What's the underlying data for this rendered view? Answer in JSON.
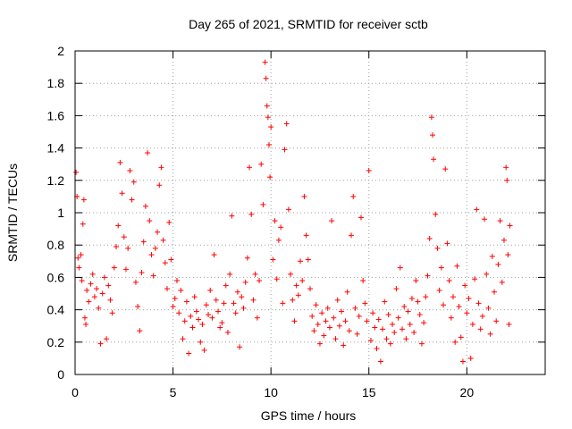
{
  "chart_data": {
    "type": "scatter",
    "title": "Day 265 of 2021, SRMTID for receiver sctb",
    "xlabel": "GPS time / hours",
    "ylabel": "SRMTID / TECUs",
    "xlim": [
      0,
      24
    ],
    "ylim": [
      0,
      2
    ],
    "xticks": [
      0,
      5,
      10,
      15,
      20
    ],
    "xtick_labels": [
      "0",
      "5",
      "10",
      "15",
      "20"
    ],
    "yticks": [
      0,
      0.2,
      0.4,
      0.6,
      0.8,
      1,
      1.2,
      1.4,
      1.6,
      1.8,
      2
    ],
    "ytick_labels": [
      "0",
      "0.2",
      "0.4",
      "0.6",
      "0.8",
      "1",
      "1.2",
      "1.4",
      "1.6",
      "1.8",
      "2"
    ],
    "grid": true,
    "marker": "+",
    "color": "#ff0000",
    "series": [
      {
        "name": "SRMTID",
        "points": [
          [
            0.05,
            1.25
          ],
          [
            0.1,
            1.1
          ],
          [
            0.15,
            0.72
          ],
          [
            0.2,
            0.66
          ],
          [
            0.3,
            0.74
          ],
          [
            0.35,
            0.58
          ],
          [
            0.4,
            0.93
          ],
          [
            0.45,
            1.08
          ],
          [
            0.5,
            0.35
          ],
          [
            0.55,
            0.31
          ],
          [
            0.6,
            0.52
          ],
          [
            0.7,
            0.45
          ],
          [
            0.8,
            0.56
          ],
          [
            0.9,
            0.62
          ],
          [
            1.0,
            0.48
          ],
          [
            1.1,
            0.53
          ],
          [
            1.2,
            0.41
          ],
          [
            1.3,
            0.19
          ],
          [
            1.4,
            0.5
          ],
          [
            1.5,
            0.6
          ],
          [
            1.6,
            0.22
          ],
          [
            1.7,
            0.55
          ],
          [
            1.8,
            0.46
          ],
          [
            1.9,
            0.38
          ],
          [
            2.0,
            0.66
          ],
          [
            2.1,
            0.79
          ],
          [
            2.2,
            0.92
          ],
          [
            2.3,
            1.31
          ],
          [
            2.4,
            1.12
          ],
          [
            2.5,
            0.85
          ],
          [
            2.6,
            0.65
          ],
          [
            2.7,
            0.78
          ],
          [
            2.8,
            1.26
          ],
          [
            2.9,
            1.08
          ],
          [
            3.0,
            1.19
          ],
          [
            3.1,
            0.57
          ],
          [
            3.2,
            0.42
          ],
          [
            3.3,
            0.27
          ],
          [
            3.4,
            0.63
          ],
          [
            3.5,
            0.82
          ],
          [
            3.6,
            1.04
          ],
          [
            3.7,
            1.37
          ],
          [
            3.8,
            0.95
          ],
          [
            3.9,
            0.74
          ],
          [
            4.0,
            0.61
          ],
          [
            4.1,
            0.78
          ],
          [
            4.2,
            0.88
          ],
          [
            4.3,
            1.17
          ],
          [
            4.4,
            1.28
          ],
          [
            4.5,
            0.83
          ],
          [
            4.6,
            0.69
          ],
          [
            4.7,
            0.53
          ],
          [
            4.8,
            0.94
          ],
          [
            4.9,
            0.71
          ],
          [
            5.0,
            0.42
          ],
          [
            5.1,
            0.47
          ],
          [
            5.2,
            0.58
          ],
          [
            5.3,
            0.38
          ],
          [
            5.4,
            0.52
          ],
          [
            5.5,
            0.22
          ],
          [
            5.6,
            0.33
          ],
          [
            5.7,
            0.45
          ],
          [
            5.8,
            0.13
          ],
          [
            5.9,
            0.36
          ],
          [
            6.0,
            0.29
          ],
          [
            6.1,
            0.48
          ],
          [
            6.2,
            0.39
          ],
          [
            6.3,
            0.34
          ],
          [
            6.4,
            0.2
          ],
          [
            6.5,
            0.31
          ],
          [
            6.6,
            0.15
          ],
          [
            6.7,
            0.43
          ],
          [
            6.8,
            0.37
          ],
          [
            6.9,
            0.52
          ],
          [
            7.0,
            0.35
          ],
          [
            7.1,
            0.74
          ],
          [
            7.2,
            0.46
          ],
          [
            7.3,
            0.39
          ],
          [
            7.4,
            0.29
          ],
          [
            7.5,
            0.32
          ],
          [
            7.6,
            0.44
          ],
          [
            7.7,
            0.55
          ],
          [
            7.8,
            0.26
          ],
          [
            7.9,
            0.62
          ],
          [
            8.0,
            0.98
          ],
          [
            8.1,
            0.44
          ],
          [
            8.2,
            0.38
          ],
          [
            8.3,
            0.51
          ],
          [
            8.4,
            0.17
          ],
          [
            8.5,
            0.48
          ],
          [
            8.6,
            0.41
          ],
          [
            8.7,
            0.57
          ],
          [
            8.8,
            0.72
          ],
          [
            8.9,
            1.28
          ],
          [
            9.0,
            0.99
          ],
          [
            9.1,
            0.46
          ],
          [
            9.2,
            0.62
          ],
          [
            9.3,
            0.35
          ],
          [
            9.4,
            0.58
          ],
          [
            9.5,
            1.3
          ],
          [
            9.6,
            1.05
          ],
          [
            9.7,
            1.93
          ],
          [
            9.75,
            1.83
          ],
          [
            9.8,
            1.66
          ],
          [
            9.85,
            1.59
          ],
          [
            9.9,
            1.42
          ],
          [
            9.95,
            1.22
          ],
          [
            10.0,
            1.53
          ],
          [
            10.1,
            0.71
          ],
          [
            10.2,
            0.95
          ],
          [
            10.3,
            0.59
          ],
          [
            10.4,
            0.83
          ],
          [
            10.5,
            0.91
          ],
          [
            10.6,
            0.44
          ],
          [
            10.7,
            1.39
          ],
          [
            10.8,
            1.55
          ],
          [
            10.9,
            1.02
          ],
          [
            11.0,
            0.62
          ],
          [
            11.1,
            0.46
          ],
          [
            11.2,
            0.33
          ],
          [
            11.3,
            0.55
          ],
          [
            11.4,
            0.49
          ],
          [
            11.5,
            0.7
          ],
          [
            11.6,
            0.58
          ],
          [
            11.7,
            1.1
          ],
          [
            11.8,
            0.86
          ],
          [
            11.9,
            0.71
          ],
          [
            12.0,
            0.53
          ],
          [
            12.1,
            0.36
          ],
          [
            12.2,
            0.27
          ],
          [
            12.3,
            0.43
          ],
          [
            12.4,
            0.31
          ],
          [
            12.5,
            0.19
          ],
          [
            12.6,
            0.38
          ],
          [
            12.7,
            0.24
          ],
          [
            12.8,
            0.33
          ],
          [
            12.9,
            0.41
          ],
          [
            13.0,
            0.29
          ],
          [
            13.1,
            0.95
          ],
          [
            13.2,
            0.35
          ],
          [
            13.3,
            0.22
          ],
          [
            13.4,
            0.46
          ],
          [
            13.5,
            0.3
          ],
          [
            13.6,
            0.39
          ],
          [
            13.7,
            0.18
          ],
          [
            13.8,
            0.33
          ],
          [
            13.9,
            0.51
          ],
          [
            14.0,
            0.27
          ],
          [
            14.1,
            0.86
          ],
          [
            14.2,
            1.1
          ],
          [
            14.3,
            0.41
          ],
          [
            14.4,
            0.25
          ],
          [
            14.5,
            0.36
          ],
          [
            14.6,
            0.97
          ],
          [
            14.7,
            0.58
          ],
          [
            14.8,
            0.44
          ],
          [
            14.9,
            0.33
          ],
          [
            15.0,
            1.26
          ],
          [
            15.1,
            0.21
          ],
          [
            15.2,
            0.38
          ],
          [
            15.3,
            0.29
          ],
          [
            15.4,
            0.16
          ],
          [
            15.5,
            0.34
          ],
          [
            15.6,
            0.08
          ],
          [
            15.7,
            0.28
          ],
          [
            15.8,
            0.45
          ],
          [
            15.9,
            0.22
          ],
          [
            16.0,
            0.37
          ],
          [
            16.1,
            0.19
          ],
          [
            16.2,
            0.31
          ],
          [
            16.3,
            0.26
          ],
          [
            16.4,
            0.53
          ],
          [
            16.5,
            0.35
          ],
          [
            16.6,
            0.66
          ],
          [
            16.7,
            0.28
          ],
          [
            16.8,
            0.42
          ],
          [
            16.9,
            0.22
          ],
          [
            17.0,
            0.39
          ],
          [
            17.1,
            0.31
          ],
          [
            17.2,
            0.47
          ],
          [
            17.3,
            0.26
          ],
          [
            17.4,
            0.58
          ],
          [
            17.5,
            0.45
          ],
          [
            17.6,
            0.37
          ],
          [
            17.7,
            0.19
          ],
          [
            17.8,
            0.32
          ],
          [
            17.9,
            0.48
          ],
          [
            18.0,
            0.61
          ],
          [
            18.1,
            0.84
          ],
          [
            18.2,
            1.59
          ],
          [
            18.25,
            1.48
          ],
          [
            18.3,
            1.33
          ],
          [
            18.4,
            0.99
          ],
          [
            18.5,
            0.78
          ],
          [
            18.6,
            0.52
          ],
          [
            18.7,
            0.66
          ],
          [
            18.8,
            0.43
          ],
          [
            18.9,
            1.27
          ],
          [
            19.0,
            0.81
          ],
          [
            19.1,
            0.58
          ],
          [
            19.2,
            0.35
          ],
          [
            19.3,
            0.48
          ],
          [
            19.4,
            0.2
          ],
          [
            19.5,
            0.67
          ],
          [
            19.6,
            0.42
          ],
          [
            19.7,
            0.23
          ],
          [
            19.8,
            0.08
          ],
          [
            19.9,
            0.55
          ],
          [
            20.0,
            0.38
          ],
          [
            20.1,
            0.47
          ],
          [
            20.2,
            0.1
          ],
          [
            20.3,
            0.31
          ],
          [
            20.4,
            0.59
          ],
          [
            20.5,
            1.02
          ],
          [
            20.6,
            0.44
          ],
          [
            20.7,
            0.28
          ],
          [
            20.8,
            0.36
          ],
          [
            20.9,
            0.96
          ],
          [
            21.0,
            0.62
          ],
          [
            21.1,
            0.41
          ],
          [
            21.2,
            0.25
          ],
          [
            21.3,
            0.73
          ],
          [
            21.4,
            0.51
          ],
          [
            21.5,
            0.33
          ],
          [
            21.6,
            0.68
          ],
          [
            21.7,
            0.95
          ],
          [
            21.8,
            0.57
          ],
          [
            21.9,
            0.83
          ],
          [
            22.0,
            1.28
          ],
          [
            22.05,
            1.2
          ],
          [
            22.1,
            0.74
          ],
          [
            22.15,
            0.31
          ],
          [
            22.2,
            0.92
          ]
        ]
      }
    ]
  }
}
